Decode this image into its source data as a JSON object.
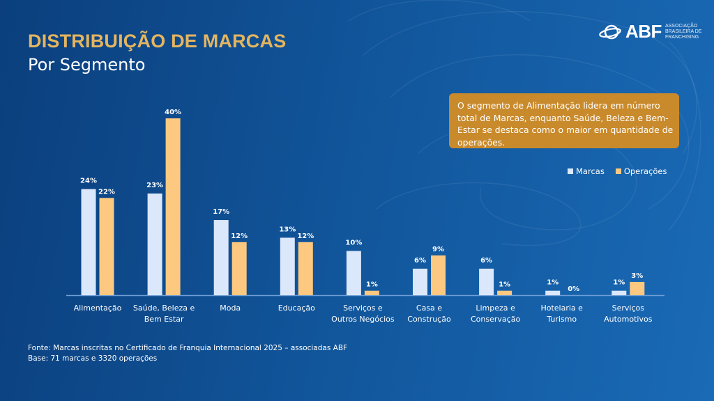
{
  "header": {
    "title": "DISTRIBUIÇÃO DE MARCAS",
    "subtitle": "Por Segmento"
  },
  "logo": {
    "name": "ABF",
    "subtitle_lines": [
      "ASSOCIAÇÃO",
      "BRASILEIRA DE",
      "FRANCHISING"
    ]
  },
  "callout": {
    "text": "O segmento de Alimentação lidera em número total de Marcas, enquanto Saúde, Beleza e Bem-Estar se destaca como o maior em quantidade de operações."
  },
  "colors": {
    "title": "#e4b560",
    "callout_bg": "#c98a2c",
    "marcas": "#dbe7fb",
    "operacoes": "#fdc880",
    "baseline": "#6f9fd6"
  },
  "chart_data": {
    "type": "bar",
    "title": "DISTRIBUIÇÃO DE MARCAS",
    "subtitle": "Por Segmento",
    "xlabel": "",
    "ylabel": "",
    "ylim": [
      0,
      40
    ],
    "grid": false,
    "legend_position": "top-right",
    "value_format": "{v}%",
    "categories": [
      [
        "Alimentação"
      ],
      [
        "Saúde, Beleza e",
        "Bem Estar"
      ],
      [
        "Moda"
      ],
      [
        "Educação"
      ],
      [
        "Serviços e",
        "Outros Negócios"
      ],
      [
        "Casa e",
        "Construção"
      ],
      [
        "Limpeza e",
        "Conservação"
      ],
      [
        "Hotelaria e",
        "Turismo"
      ],
      [
        "Serviços",
        "Automotivos"
      ]
    ],
    "series": [
      {
        "name": "Marcas",
        "color": "#dbe7fb",
        "values": [
          24,
          23,
          17,
          13,
          10,
          6,
          6,
          1,
          1
        ]
      },
      {
        "name": "Operações",
        "color": "#fdc880",
        "values": [
          22,
          40,
          12,
          12,
          1,
          9,
          1,
          0,
          3
        ]
      }
    ]
  },
  "footnote": {
    "source": "Fonte: Marcas inscritas no Certificado de Franquia Internacional 2025 – associadas ABF",
    "base": "Base: 71 marcas e 3320 operações"
  }
}
